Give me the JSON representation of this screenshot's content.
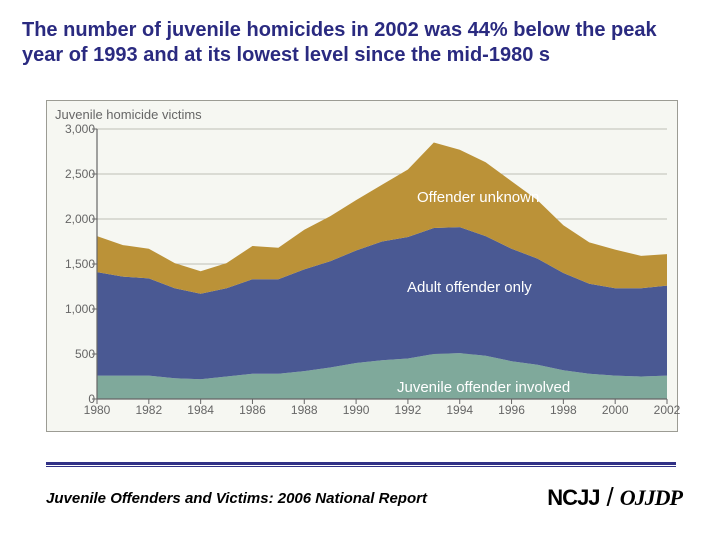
{
  "title": "The number of juvenile homicides in 2002 was 44% below the peak year of 1993 and at its lowest level since the mid-1980 s",
  "footer": "Juvenile Offenders and Victims: 2006 National Report",
  "logo": {
    "left": "NCJJ",
    "slash": "/",
    "right": "OJJDP"
  },
  "chart": {
    "type": "area",
    "title": "Juvenile homicide victims",
    "background_color": "#f6f7f2",
    "border_color": "#9c9c94",
    "grid_color": "#bfbfb6",
    "axis_color": "#666666",
    "label_color": "#ffffff",
    "label_fontsize": 15,
    "title_fontsize": 13,
    "tick_fontsize": 12,
    "xlim": [
      1980,
      2002
    ],
    "ylim": [
      0,
      3000
    ],
    "ytick_step": 500,
    "xtick_step": 2,
    "years": [
      1980,
      1981,
      1982,
      1983,
      1984,
      1985,
      1986,
      1987,
      1988,
      1989,
      1990,
      1991,
      1992,
      1993,
      1994,
      1995,
      1996,
      1997,
      1998,
      1999,
      2000,
      2001,
      2002
    ],
    "series": [
      {
        "name": "Juvenile offender involved",
        "label_x": 300,
        "label_y": 250,
        "color": "#7fa99b",
        "values": [
          260,
          260,
          260,
          230,
          220,
          250,
          280,
          280,
          310,
          350,
          400,
          430,
          450,
          500,
          510,
          480,
          420,
          380,
          320,
          280,
          260,
          250,
          260
        ]
      },
      {
        "name": "Adult offender only",
        "label_x": 310,
        "label_y": 150,
        "color": "#4a5993",
        "values": [
          1150,
          1100,
          1080,
          1000,
          950,
          980,
          1050,
          1050,
          1130,
          1180,
          1250,
          1320,
          1350,
          1400,
          1400,
          1330,
          1250,
          1180,
          1080,
          1000,
          970,
          980,
          1000
        ]
      },
      {
        "name": "Offender unknown",
        "label_x": 320,
        "label_y": 60,
        "color": "#bb9238",
        "values": [
          400,
          350,
          330,
          280,
          250,
          280,
          370,
          350,
          440,
          500,
          560,
          630,
          750,
          950,
          860,
          820,
          750,
          650,
          530,
          460,
          430,
          360,
          350
        ]
      }
    ]
  }
}
